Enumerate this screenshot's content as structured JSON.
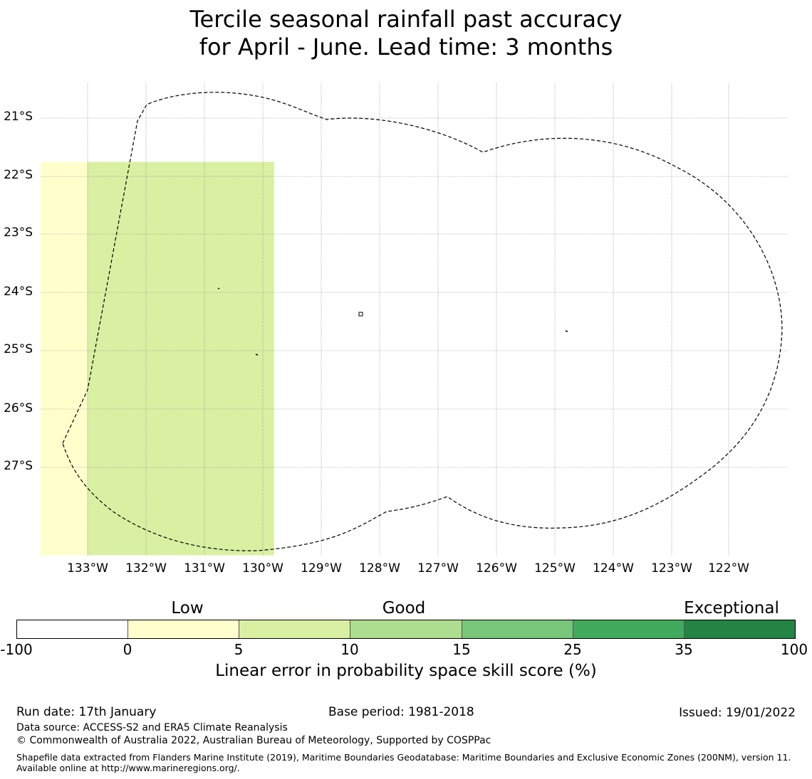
{
  "title": {
    "line1": "Tercile seasonal rainfall past accuracy",
    "line2": "for April - June. Lead time: 3 months"
  },
  "map": {
    "lat_labels": [
      "21°S",
      "22°S",
      "23°S",
      "24°S",
      "25°S",
      "26°S",
      "27°S"
    ],
    "lon_labels": [
      "133°W",
      "132°W",
      "131°W",
      "130°W",
      "129°W",
      "128°W",
      "127°W",
      "126°W",
      "125°W",
      "124°W",
      "123°W",
      "122°W"
    ],
    "grid_color": "#888888",
    "category_colors": [
      "#ffffff",
      "#ffffcc",
      "#d9f0a3",
      "#addd8e",
      "#78c679",
      "#41ab5d",
      "#238443"
    ],
    "cell_rows": [
      "0000000000000000",
      "0000000000000000",
      "1222200000000000",
      "1222200000000000",
      "1222200000000000",
      "1222200000000000",
      "1222200000000000",
      "1222200000000000",
      "1222200000000000",
      "1222200000000000",
      "1222200000000000",
      "1222200000000000"
    ],
    "boundary_style": "dashed"
  },
  "legend": {
    "category_labels": {
      "low": "Low",
      "good": "Good",
      "exceptional": "Exceptional"
    },
    "ticks": [
      "-100",
      "0",
      "5",
      "10",
      "15",
      "25",
      "35",
      "100"
    ],
    "colors": [
      "#ffffff",
      "#ffffcc",
      "#d9f0a3",
      "#addd8e",
      "#78c679",
      "#41ab5d",
      "#238443"
    ],
    "title": "Linear error in probability space skill score (%)"
  },
  "footer": {
    "run_date": "Run date: 17th January",
    "base_period": "Base period: 1981-2018",
    "issued": "Issued: 19/01/2022",
    "data_source": "Data source: ACCESS-S2 and ERA5 Climate Reanalysis",
    "copyright": "© Commonwealth of Australia 2022, Australian Bureau of Meteorology, Supported by COSPPac",
    "shapefile": "Shapefile data extracted from Flanders Marine Institute (2019), Maritime Boundaries Geodatabase: Maritime Boundaries and Exclusive Economic Zones (200NM), version 11. Available online at http://www.marineregions.org/."
  }
}
